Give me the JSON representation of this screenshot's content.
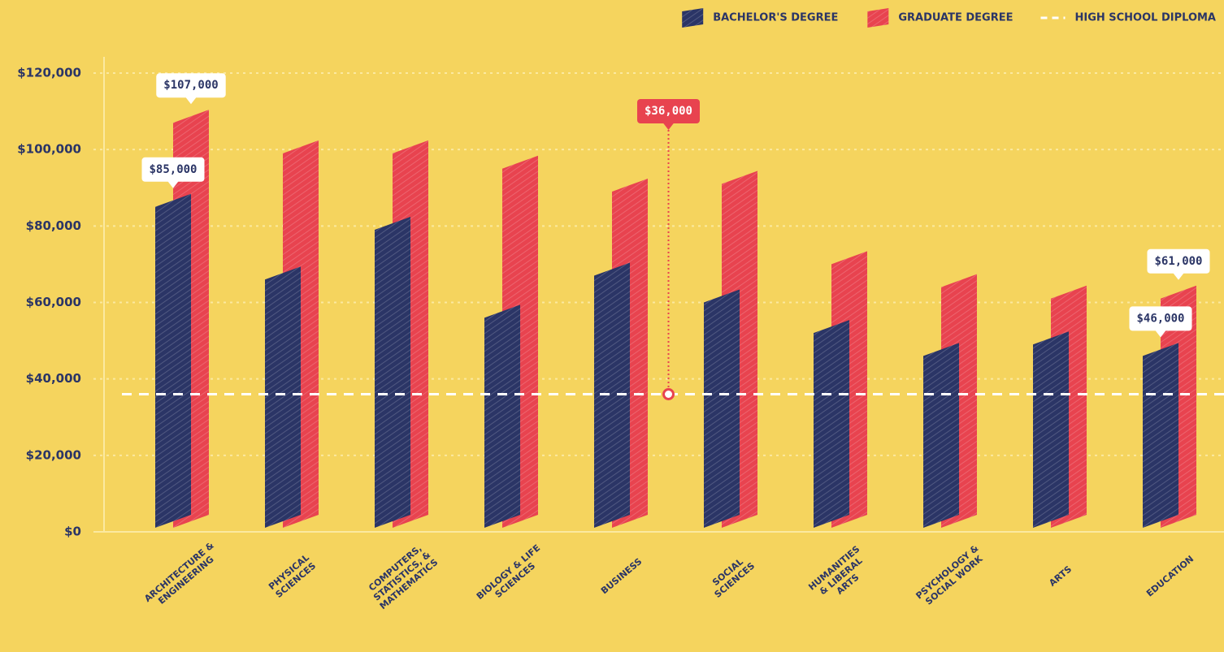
{
  "chart_data": {
    "type": "bar",
    "categories": [
      "ARCHITECTURE &\nENGINEERING",
      "PHYSICAL\nSCIENCES",
      "COMPUTERS,\nSTATISTICS, &\nMATHEMATICS",
      "BIOLOGY & LIFE\nSCIENCES",
      "BUSINESS",
      "SOCIAL\nSCIENCES",
      "HUMANITIES\n& LIBERAL\nARTS",
      "PSYCHOLOGY &\nSOCIAL WORK",
      "ARTS",
      "EDUCATION"
    ],
    "series": [
      {
        "name": "BACHELOR'S DEGREE",
        "color": "#2b3566",
        "values": [
          85000,
          66000,
          79000,
          56000,
          67000,
          60000,
          52000,
          46000,
          49000,
          46000
        ],
        "value_labels": [
          "$85,000",
          null,
          null,
          null,
          null,
          null,
          null,
          null,
          null,
          "$46,000"
        ]
      },
      {
        "name": "GRADUATE DEGREE",
        "color": "#e8434f",
        "values": [
          107000,
          99000,
          99000,
          95000,
          89000,
          91000,
          70000,
          64000,
          61000,
          61000
        ],
        "value_labels": [
          "$107,000",
          null,
          null,
          null,
          null,
          null,
          null,
          null,
          null,
          "$61,000"
        ]
      }
    ],
    "reference_line": {
      "name": "HIGH SCHOOL DIPLOMA",
      "value": 36000,
      "value_label": "$36,000",
      "color": "#ffffff"
    },
    "ylim": [
      0,
      120000
    ],
    "yticks": [
      {
        "value": 0,
        "label": "$0"
      },
      {
        "value": 20000,
        "label": "$20,000"
      },
      {
        "value": 40000,
        "label": "$40,000"
      },
      {
        "value": 60000,
        "label": "$60,000"
      },
      {
        "value": 80000,
        "label": "$80,000"
      },
      {
        "value": 100000,
        "label": "$100,000"
      },
      {
        "value": 120000,
        "label": "$120,000"
      }
    ],
    "grid": true,
    "legend": "top-right"
  }
}
